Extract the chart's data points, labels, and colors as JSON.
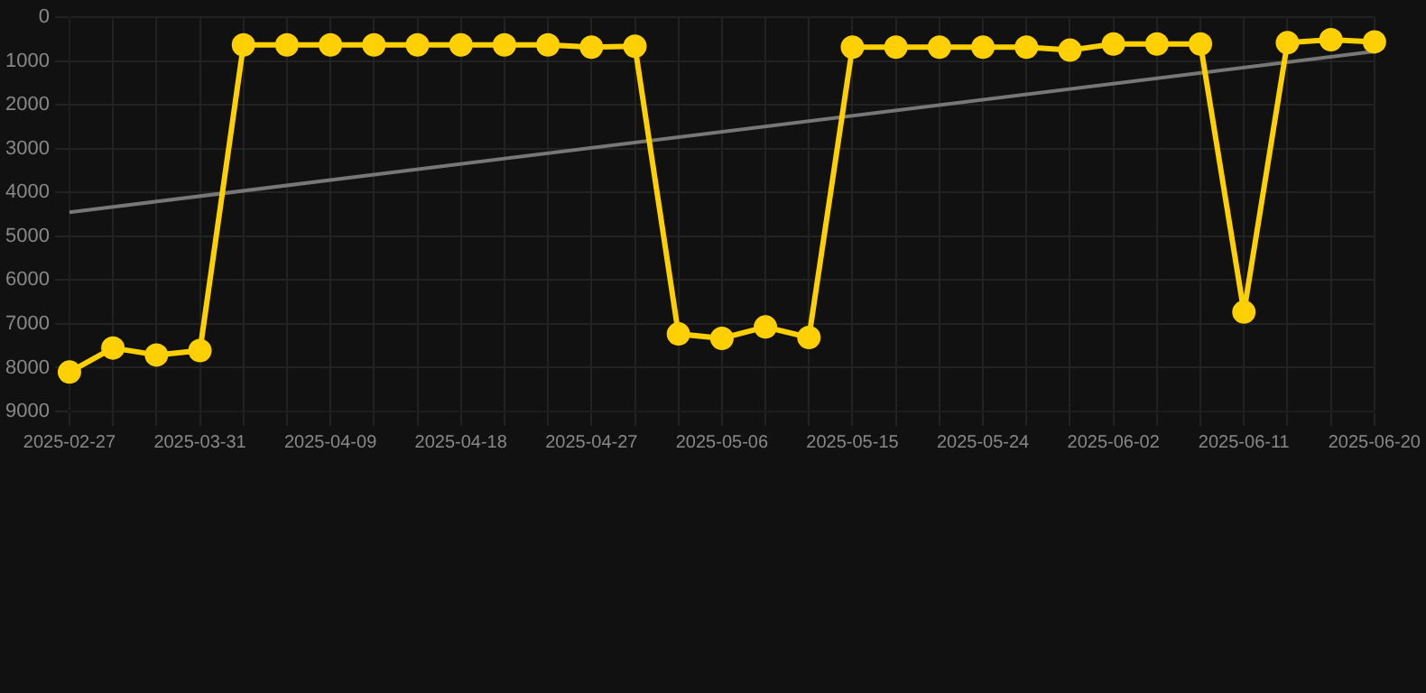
{
  "chart_data": {
    "type": "line",
    "categories": [
      "2025-02-27",
      null,
      null,
      "2025-03-31",
      null,
      null,
      "2025-04-09",
      null,
      null,
      "2025-04-18",
      null,
      null,
      "2025-04-27",
      null,
      null,
      "2025-05-06",
      null,
      null,
      "2025-05-15",
      null,
      null,
      "2025-05-24",
      null,
      null,
      "2025-06-02",
      null,
      null,
      "2025-06-11",
      null,
      null,
      "2025-06-20"
    ],
    "series": [
      {
        "type": "line",
        "color": "#ffd000",
        "marker": "circle",
        "values": [
          8100,
          7550,
          7710,
          7610,
          630,
          630,
          630,
          630,
          630,
          630,
          630,
          630,
          680,
          660,
          7230,
          7330,
          7070,
          7310,
          680,
          680,
          680,
          680,
          680,
          750,
          610,
          610,
          610,
          6730,
          580,
          510,
          560
        ]
      },
      {
        "type": "line",
        "color": "#777777",
        "marker": "none",
        "values": [
          4450,
          null,
          null,
          null,
          null,
          null,
          null,
          null,
          null,
          null,
          null,
          null,
          null,
          null,
          null,
          null,
          null,
          null,
          null,
          null,
          null,
          null,
          null,
          null,
          null,
          null,
          null,
          null,
          null,
          null,
          780
        ]
      }
    ],
    "ylim": [
      9000,
      0
    ],
    "yticks": [
      0,
      1000,
      2000,
      3000,
      4000,
      5000,
      6000,
      7000,
      8000,
      9000
    ],
    "grid": true,
    "legend": false
  }
}
